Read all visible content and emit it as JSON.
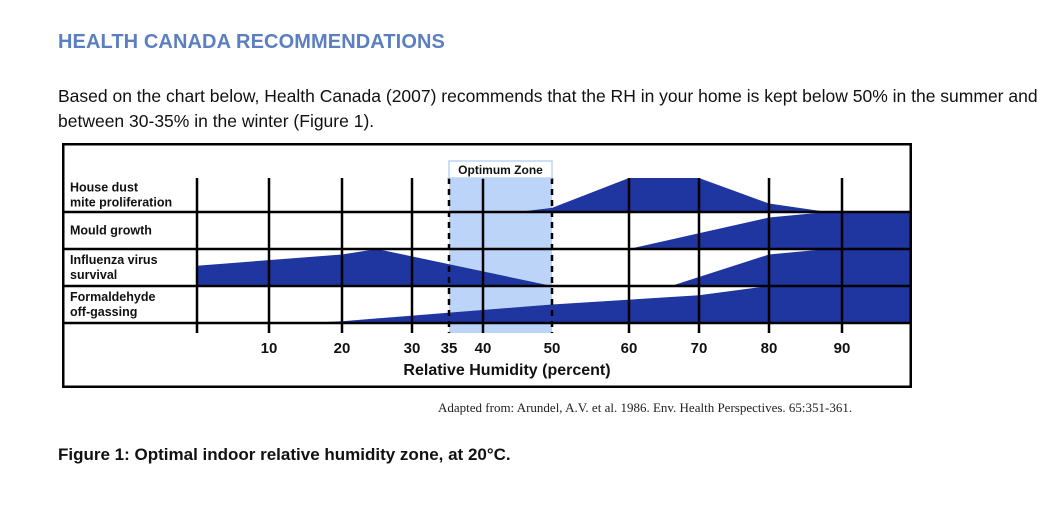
{
  "heading": "HEALTH CANADA RECOMMENDATIONS",
  "paragraph": "Based on the chart below, Health Canada (2007) recommends that the RH in your home is kept below 50% in the summer and between 30-35% in the winter (Figure 1).",
  "chart_data": {
    "type": "area",
    "title": "",
    "xlabel": "Relative Humidity (percent)",
    "ylabel": "",
    "xlim": [
      0,
      100
    ],
    "x_ticks": [
      10,
      20,
      30,
      35,
      40,
      50,
      60,
      70,
      80,
      90
    ],
    "optimum_zone": {
      "label": "Optimum Zone",
      "range": [
        35,
        50
      ]
    },
    "fill_color": "#1f35a0",
    "zone_color": "#bcd4f7",
    "series": [
      {
        "name": "House dust mite proliferation",
        "label_lines": [
          "House dust",
          "mite proliferation"
        ],
        "points": [
          [
            0,
            0
          ],
          [
            45,
            0
          ],
          [
            50,
            0.12
          ],
          [
            60,
            1
          ],
          [
            70,
            1
          ],
          [
            80,
            0.25
          ],
          [
            88,
            0
          ],
          [
            100,
            0
          ]
        ]
      },
      {
        "name": "Mould growth",
        "label_lines": [
          "Mould growth"
        ],
        "points": [
          [
            0,
            0
          ],
          [
            60,
            0
          ],
          [
            80,
            0.85
          ],
          [
            88,
            1
          ],
          [
            100,
            1
          ]
        ]
      },
      {
        "name": "Influenza virus survival",
        "label_lines": [
          "Influenza virus",
          "survival"
        ],
        "points": [
          [
            0,
            0.55
          ],
          [
            20,
            0.85
          ],
          [
            25,
            1
          ],
          [
            50,
            0
          ],
          [
            66,
            0
          ],
          [
            80,
            0.85
          ],
          [
            88,
            1
          ],
          [
            100,
            1
          ]
        ]
      },
      {
        "name": "Formaldehyde off-gassing",
        "label_lines": [
          "Formaldehyde",
          "off-gassing"
        ],
        "points": [
          [
            0,
            0
          ],
          [
            15,
            0
          ],
          [
            20,
            0.05
          ],
          [
            50,
            0.5
          ],
          [
            70,
            0.75
          ],
          [
            80,
            1
          ],
          [
            100,
            1
          ]
        ]
      }
    ]
  },
  "citation": "Adapted from: Arundel, A.V. et al. 1986. Env. Health Perspectives. 65:351-361.",
  "caption": "Figure 1: Optimal indoor relative humidity zone, at 20°C."
}
